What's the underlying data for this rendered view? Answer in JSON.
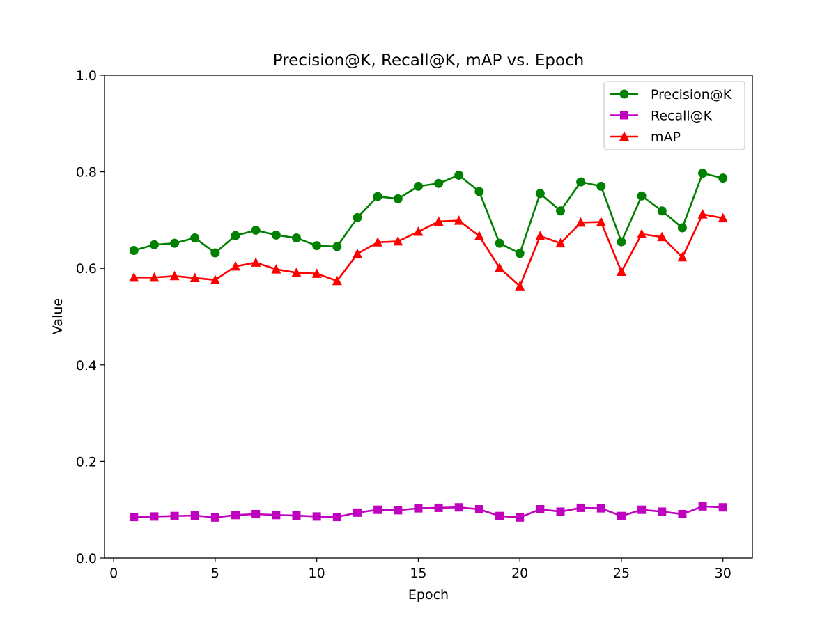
{
  "chart_data": {
    "type": "line",
    "title": "Precision@K, Recall@K, mAP vs. Epoch",
    "xlabel": "Epoch",
    "ylabel": "Value",
    "xlim": [
      -0.45,
      31.45
    ],
    "ylim": [
      0.0,
      1.0
    ],
    "x_ticks": [
      0,
      5,
      10,
      15,
      20,
      25,
      30
    ],
    "y_ticks": [
      0.0,
      0.2,
      0.4,
      0.6,
      0.8,
      1.0
    ],
    "x_tick_labels": [
      "0",
      "5",
      "10",
      "15",
      "20",
      "25",
      "30"
    ],
    "y_tick_labels": [
      "0.0",
      "0.2",
      "0.4",
      "0.6",
      "0.8",
      "1.0"
    ],
    "grid": false,
    "legend_position": "top-right",
    "x": [
      1,
      2,
      3,
      4,
      5,
      6,
      7,
      8,
      9,
      10,
      11,
      12,
      13,
      14,
      15,
      16,
      17,
      18,
      19,
      20,
      21,
      22,
      23,
      24,
      25,
      26,
      27,
      28,
      29,
      30
    ],
    "series": [
      {
        "name": "Precision@K",
        "color": "#008000",
        "marker": "circle",
        "values": [
          0.637,
          0.649,
          0.652,
          0.663,
          0.632,
          0.668,
          0.679,
          0.669,
          0.663,
          0.647,
          0.645,
          0.705,
          0.749,
          0.744,
          0.77,
          0.776,
          0.793,
          0.759,
          0.652,
          0.631,
          0.755,
          0.719,
          0.779,
          0.77,
          0.655,
          0.75,
          0.719,
          0.684,
          0.797,
          0.787
        ]
      },
      {
        "name": "Recall@K",
        "color": "#bf00bf",
        "marker": "square",
        "values": [
          0.085,
          0.086,
          0.087,
          0.088,
          0.084,
          0.089,
          0.091,
          0.089,
          0.088,
          0.086,
          0.085,
          0.094,
          0.1,
          0.099,
          0.103,
          0.104,
          0.105,
          0.101,
          0.087,
          0.084,
          0.101,
          0.096,
          0.104,
          0.103,
          0.087,
          0.1,
          0.096,
          0.091,
          0.107,
          0.105
        ]
      },
      {
        "name": "mAP",
        "color": "#ff0000",
        "marker": "triangle",
        "values": [
          0.581,
          0.581,
          0.584,
          0.58,
          0.576,
          0.604,
          0.612,
          0.598,
          0.591,
          0.589,
          0.574,
          0.63,
          0.654,
          0.656,
          0.676,
          0.697,
          0.699,
          0.667,
          0.601,
          0.563,
          0.667,
          0.652,
          0.695,
          0.696,
          0.593,
          0.671,
          0.665,
          0.623,
          0.712,
          0.704
        ]
      }
    ]
  }
}
